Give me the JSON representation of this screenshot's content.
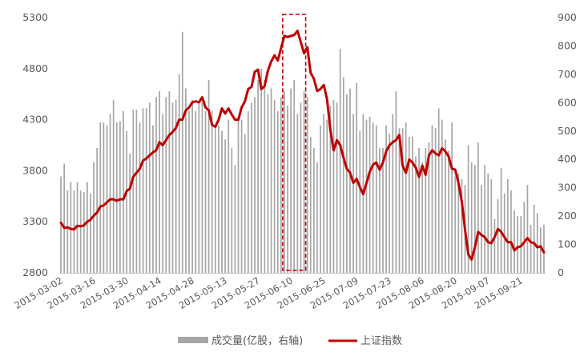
{
  "chart_data": {
    "type": "bar+line",
    "title": "",
    "x_dates": [
      "2015-03-02",
      "2015-03-03",
      "2015-03-04",
      "2015-03-05",
      "2015-03-06",
      "2015-03-09",
      "2015-03-10",
      "2015-03-11",
      "2015-03-12",
      "2015-03-13",
      "2015-03-16",
      "2015-03-17",
      "2015-03-18",
      "2015-03-19",
      "2015-03-20",
      "2015-03-23",
      "2015-03-24",
      "2015-03-25",
      "2015-03-26",
      "2015-03-27",
      "2015-03-30",
      "2015-03-31",
      "2015-04-01",
      "2015-04-02",
      "2015-04-03",
      "2015-04-07",
      "2015-04-08",
      "2015-04-09",
      "2015-04-10",
      "2015-04-13",
      "2015-04-14",
      "2015-04-15",
      "2015-04-16",
      "2015-04-17",
      "2015-04-20",
      "2015-04-21",
      "2015-04-22",
      "2015-04-23",
      "2015-04-24",
      "2015-04-27",
      "2015-04-28",
      "2015-04-29",
      "2015-04-30",
      "2015-05-04",
      "2015-05-05",
      "2015-05-06",
      "2015-05-07",
      "2015-05-08",
      "2015-05-11",
      "2015-05-12",
      "2015-05-13",
      "2015-05-14",
      "2015-05-15",
      "2015-05-18",
      "2015-05-19",
      "2015-05-20",
      "2015-05-21",
      "2015-05-22",
      "2015-05-25",
      "2015-05-26",
      "2015-05-27",
      "2015-05-28",
      "2015-05-29",
      "2015-06-01",
      "2015-06-02",
      "2015-06-03",
      "2015-06-04",
      "2015-06-05",
      "2015-06-08",
      "2015-06-09",
      "2015-06-10",
      "2015-06-11",
      "2015-06-12",
      "2015-06-15",
      "2015-06-16",
      "2015-06-17",
      "2015-06-18",
      "2015-06-19",
      "2015-06-23",
      "2015-06-24",
      "2015-06-25",
      "2015-06-26",
      "2015-06-29",
      "2015-06-30",
      "2015-07-01",
      "2015-07-02",
      "2015-07-03",
      "2015-07-06",
      "2015-07-07",
      "2015-07-08",
      "2015-07-09",
      "2015-07-10",
      "2015-07-13",
      "2015-07-14",
      "2015-07-15",
      "2015-07-16",
      "2015-07-17",
      "2015-07-20",
      "2015-07-21",
      "2015-07-22",
      "2015-07-23",
      "2015-07-24",
      "2015-07-27",
      "2015-07-28",
      "2015-07-29",
      "2015-07-30",
      "2015-07-31",
      "2015-08-03",
      "2015-08-04",
      "2015-08-05",
      "2015-08-06",
      "2015-08-07",
      "2015-08-10",
      "2015-08-11",
      "2015-08-12",
      "2015-08-13",
      "2015-08-14",
      "2015-08-17",
      "2015-08-18",
      "2015-08-19",
      "2015-08-20",
      "2015-08-21",
      "2015-08-24",
      "2015-08-25",
      "2015-08-26",
      "2015-08-27",
      "2015-08-28",
      "2015-08-31",
      "2015-09-01",
      "2015-09-02",
      "2015-09-07",
      "2015-09-08",
      "2015-09-09",
      "2015-09-10",
      "2015-09-11",
      "2015-09-14",
      "2015-09-15",
      "2015-09-16",
      "2015-09-17",
      "2015-09-18",
      "2015-09-21",
      "2015-09-22",
      "2015-09-23",
      "2015-09-24",
      "2015-09-25",
      "2015-09-28",
      "2015-09-29",
      "2015-09-30"
    ],
    "x_tick_labels": [
      "2015-03-02",
      "2015-03-16",
      "2015-03-30",
      "2015-04-14",
      "2015-04-28",
      "2015-05-13",
      "2015-05-27",
      "2015-06-10",
      "2015-06-25",
      "2015-07-09",
      "2015-07-23",
      "2015-08-06",
      "2015-08-20",
      "2015-09-07",
      "2015-09-21"
    ],
    "y_left": {
      "ticks": [
        "2800",
        "3300",
        "3800",
        "4300",
        "4800",
        "5300"
      ],
      "min": 2800,
      "max": 5300
    },
    "y_right": {
      "ticks": [
        "0",
        "100",
        "200",
        "300",
        "400",
        "500",
        "600",
        "700",
        "800",
        "900"
      ],
      "min": 0,
      "max": 900
    },
    "series": [
      {
        "name": "成交量(亿股，右轴)",
        "type": "bar",
        "axis": "right",
        "color": "#a6a6a6",
        "values": [
          340,
          385,
          290,
          320,
          290,
          320,
          290,
          285,
          320,
          280,
          390,
          440,
          530,
          530,
          520,
          560,
          610,
          530,
          535,
          570,
          500,
          420,
          575,
          575,
          530,
          580,
          580,
          600,
          520,
          620,
          640,
          560,
          620,
          640,
          600,
          610,
          700,
          850,
          650,
          570,
          610,
          570,
          600,
          600,
          570,
          680,
          570,
          510,
          520,
          500,
          470,
          540,
          440,
          380,
          550,
          540,
          490,
          570,
          600,
          620,
          680,
          720,
          680,
          630,
          650,
          610,
          570,
          620,
          640,
          590,
          650,
          680,
          560,
          600,
          640,
          620,
          480,
          440,
          390,
          520,
          560,
          540,
          590,
          610,
          600,
          790,
          690,
          630,
          650,
          560,
          670,
          500,
          560,
          540,
          550,
          530,
          520,
          440,
          440,
          520,
          490,
          560,
          640,
          510,
          510,
          530,
          480,
          480,
          410,
          440,
          390,
          440,
          460,
          520,
          510,
          580,
          540,
          470,
          430,
          530,
          340,
          350,
          330,
          310,
          450,
          390,
          380,
          460,
          310,
          380,
          350,
          330,
          190,
          260,
          370,
          280,
          330,
          290,
          220,
          200,
          200,
          250,
          310,
          170,
          240,
          210,
          160,
          170
        ]
      },
      {
        "name": "上证指数",
        "type": "line",
        "axis": "left",
        "color": "#c00000",
        "values": [
          3290,
          3240,
          3245,
          3230,
          3225,
          3260,
          3255,
          3265,
          3300,
          3320,
          3360,
          3390,
          3450,
          3460,
          3490,
          3520,
          3520,
          3505,
          3520,
          3520,
          3600,
          3625,
          3740,
          3780,
          3820,
          3900,
          3920,
          3950,
          3980,
          4000,
          4080,
          4050,
          4100,
          4150,
          4180,
          4220,
          4300,
          4300,
          4390,
          4420,
          4470,
          4480,
          4470,
          4520,
          4420,
          4390,
          4250,
          4230,
          4300,
          4410,
          4360,
          4410,
          4350,
          4300,
          4300,
          4420,
          4480,
          4600,
          4620,
          4770,
          4790,
          4600,
          4630,
          4780,
          4870,
          4930,
          4880,
          5000,
          5120,
          5110,
          5120,
          5130,
          5170,
          5060,
          4950,
          5010,
          4760,
          4700,
          4580,
          4600,
          4640,
          4500,
          4200,
          4000,
          4100,
          4050,
          3930,
          3820,
          3780,
          3680,
          3720,
          3640,
          3570,
          3680,
          3790,
          3860,
          3880,
          3810,
          3880,
          3990,
          4050,
          4080,
          4100,
          4150,
          3850,
          3780,
          3910,
          3880,
          3830,
          3740,
          3850,
          3760,
          3950,
          4000,
          3970,
          3950,
          4020,
          3990,
          3940,
          3820,
          3810,
          3680,
          3500,
          3220,
          2980,
          2930,
          3050,
          3200,
          3170,
          3150,
          3100,
          3090,
          3150,
          3230,
          3200,
          3150,
          3100,
          3100,
          3020,
          3050,
          3060,
          3100,
          3140,
          3100,
          3090,
          3050,
          3060,
          3000
        ]
      }
    ],
    "annotations": [
      {
        "type": "dashed-box",
        "color": "#c00000",
        "from": "2015-06-08",
        "to": "2015-06-16",
        "y_from": 2800,
        "y_to": 5300
      }
    ],
    "legend": {
      "position": "bottom",
      "items": [
        "成交量(亿股，右轴)",
        "上证指数"
      ]
    },
    "grid": false
  }
}
